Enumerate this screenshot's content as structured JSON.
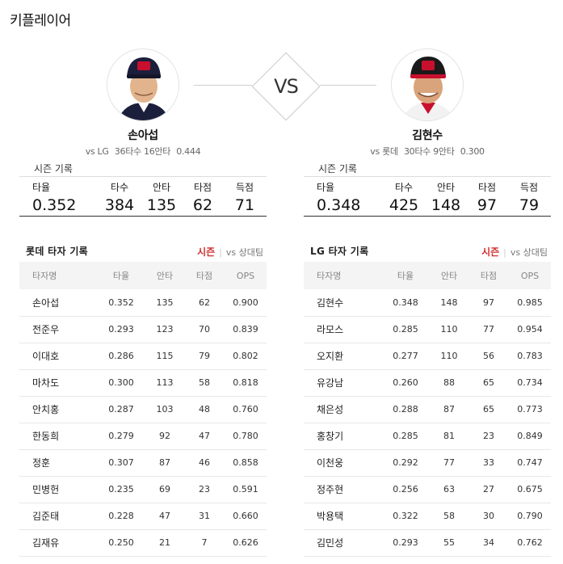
{
  "page_title": "키플레이어",
  "vs_label": "VS",
  "players": [
    {
      "name": "손아섭",
      "stat_opponent": "vs LG",
      "stat_ab_hits": "36타수 16안타",
      "stat_avg": "0.444",
      "cap_color": "#1c1f3c",
      "cap_logo_color": "#c8102e"
    },
    {
      "name": "김현수",
      "stat_opponent": "vs 롯데",
      "stat_ab_hits": "30타수 9안타",
      "stat_avg": "0.300",
      "cap_color": "#1a1a1a",
      "cap_logo_color": "#c8102e"
    }
  ],
  "season": [
    {
      "title": "시즌 기록",
      "labels": [
        "타율",
        "타수",
        "안타",
        "타점",
        "득점"
      ],
      "values": [
        "0.352",
        "384",
        "135",
        "62",
        "71"
      ]
    },
    {
      "title": "시즌 기록",
      "labels": [
        "타율",
        "타수",
        "안타",
        "타점",
        "득점"
      ],
      "values": [
        "0.348",
        "425",
        "148",
        "97",
        "79"
      ]
    }
  ],
  "panels": [
    {
      "title": "롯데 타자 기록",
      "tab_active": "시즌",
      "tab_other": "vs 상대팀",
      "columns": [
        "타자명",
        "타율",
        "안타",
        "타점",
        "OPS"
      ],
      "rows": [
        [
          "손아섭",
          "0.352",
          "135",
          "62",
          "0.900"
        ],
        [
          "전준우",
          "0.293",
          "123",
          "70",
          "0.839"
        ],
        [
          "이대호",
          "0.286",
          "115",
          "79",
          "0.802"
        ],
        [
          "마차도",
          "0.300",
          "113",
          "58",
          "0.818"
        ],
        [
          "안치홍",
          "0.287",
          "103",
          "48",
          "0.760"
        ],
        [
          "한동희",
          "0.279",
          "92",
          "47",
          "0.780"
        ],
        [
          "정훈",
          "0.307",
          "87",
          "46",
          "0.858"
        ],
        [
          "민병헌",
          "0.235",
          "69",
          "23",
          "0.591"
        ],
        [
          "김준태",
          "0.228",
          "47",
          "31",
          "0.660"
        ],
        [
          "김재유",
          "0.250",
          "21",
          "7",
          "0.626"
        ]
      ]
    },
    {
      "title": "LG 타자 기록",
      "tab_active": "시즌",
      "tab_other": "vs 상대팀",
      "columns": [
        "타자명",
        "타율",
        "안타",
        "타점",
        "OPS"
      ],
      "rows": [
        [
          "김현수",
          "0.348",
          "148",
          "97",
          "0.985"
        ],
        [
          "라모스",
          "0.285",
          "110",
          "77",
          "0.954"
        ],
        [
          "오지환",
          "0.277",
          "110",
          "56",
          "0.783"
        ],
        [
          "유강남",
          "0.260",
          "88",
          "65",
          "0.734"
        ],
        [
          "채은성",
          "0.288",
          "87",
          "65",
          "0.773"
        ],
        [
          "홍창기",
          "0.285",
          "81",
          "23",
          "0.849"
        ],
        [
          "이천웅",
          "0.292",
          "77",
          "33",
          "0.747"
        ],
        [
          "정주현",
          "0.256",
          "63",
          "27",
          "0.675"
        ],
        [
          "박용택",
          "0.322",
          "58",
          "30",
          "0.790"
        ],
        [
          "김민성",
          "0.293",
          "55",
          "34",
          "0.762"
        ]
      ]
    }
  ]
}
